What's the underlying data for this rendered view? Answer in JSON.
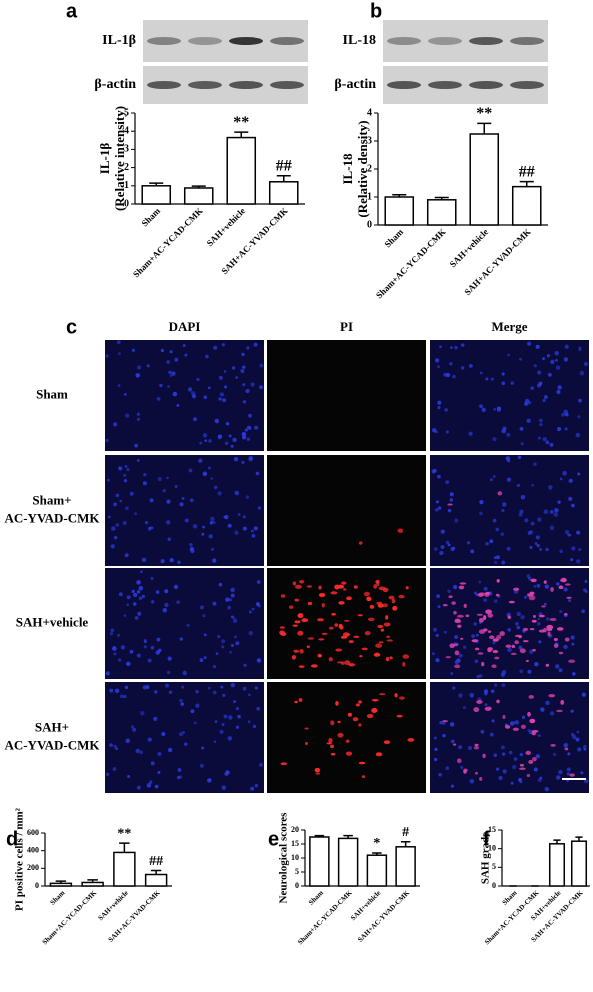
{
  "chart_data": [
    {
      "type": "bar",
      "panel": "a",
      "ylabel": [
        "IL-1β",
        "(Relative intensity)"
      ],
      "categories": [
        "Sham",
        "Sham+AC-YCAD-CMK",
        "SAH+vehicle",
        "SAH+AC-YVAD-CMK"
      ],
      "values": [
        1.0,
        0.88,
        3.65,
        1.22
      ],
      "errors": [
        0.15,
        0.1,
        0.3,
        0.33
      ],
      "annotations": [
        null,
        null,
        "**",
        "##"
      ],
      "ylim": [
        0,
        5
      ],
      "yticks": [
        0,
        1,
        2,
        3,
        4,
        5
      ],
      "color": "#ffffff"
    },
    {
      "type": "bar",
      "panel": "b",
      "ylabel": [
        "IL-18",
        "(Relative density)"
      ],
      "categories": [
        "Sham",
        "Sham+AC-YCAD-CMK",
        "SAH+vehicle",
        "SAH+AC-YVAD-CMK"
      ],
      "values": [
        1.0,
        0.9,
        3.25,
        1.37
      ],
      "errors": [
        0.08,
        0.08,
        0.38,
        0.18
      ],
      "annotations": [
        null,
        null,
        "**",
        "##"
      ],
      "ylim": [
        0,
        4
      ],
      "yticks": [
        0,
        1,
        2,
        3,
        4
      ],
      "color": "#ffffff"
    },
    {
      "type": "bar",
      "panel": "d",
      "ylabel": [
        "PI positive cells / mm²"
      ],
      "categories": [
        "Sham",
        "Sham+AC-YCAD-CMK",
        "SAH+vehicle",
        "SAH+AC-YVAD-CMK"
      ],
      "values": [
        30,
        40,
        380,
        130
      ],
      "errors": [
        25,
        30,
        105,
        45
      ],
      "annotations": [
        null,
        null,
        "**",
        "##"
      ],
      "ylim": [
        0,
        600
      ],
      "yticks": [
        0,
        200,
        400,
        600
      ],
      "color": "#ffffff"
    },
    {
      "type": "bar",
      "panel": "e",
      "ylabel": [
        "Neurological scores"
      ],
      "categories": [
        "Sham",
        "Sham+AC-YCAD-CMK",
        "SAH+vehicle",
        "SAH+AC-YVAD-CMK"
      ],
      "values": [
        17.5,
        17,
        11,
        14
      ],
      "errors": [
        0.5,
        1,
        0.8,
        1.8
      ],
      "annotations": [
        null,
        null,
        "*",
        "#"
      ],
      "ylim": [
        0,
        20
      ],
      "yticks": [
        0,
        5,
        10,
        15,
        20
      ],
      "color": "#ffffff"
    },
    {
      "type": "bar",
      "panel": "f",
      "ylabel": [
        "SAH grade"
      ],
      "categories": [
        "Sham",
        "Sham+AC-YCAD-CMK",
        "SAH+vehicle",
        "SAH+AC-YVAD-CMK"
      ],
      "values": [
        0,
        0,
        11.3,
        12
      ],
      "errors": [
        0,
        0,
        1,
        1.1
      ],
      "ylim": [
        0,
        15
      ],
      "yticks": [
        0,
        5,
        10,
        15
      ],
      "color": "#ffffff"
    }
  ],
  "blots": [
    {
      "labels": [
        "IL-1β",
        "β-actin"
      ]
    },
    {
      "labels": [
        "IL-18",
        "β-actin"
      ]
    }
  ],
  "microscopy": {
    "panel": "c",
    "columns": [
      "DAPI",
      "PI",
      "Merge"
    ],
    "rows": [
      [
        "Sham"
      ],
      [
        "Sham+",
        "AC-YVAD-CMK"
      ],
      [
        "SAH+vehicle"
      ],
      [
        "SAH+",
        "AC-YVAD-CMK"
      ]
    ]
  }
}
